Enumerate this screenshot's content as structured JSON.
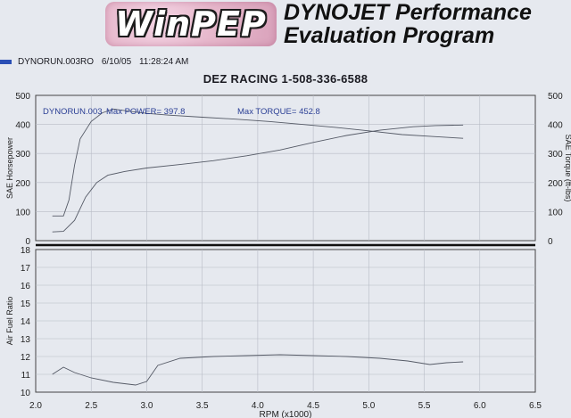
{
  "header": {
    "logo_text": "WinPEP",
    "title_line_1": "DYNOJET Performance",
    "title_line_2": "Evaluation Program"
  },
  "run_info": {
    "run_file": "DYNORUN.003RO",
    "date": "6/10/05",
    "time": "11:28:24 AM"
  },
  "chart_title": "DEZ RACING 1-508-336-6588",
  "chart_data": [
    {
      "type": "line",
      "name": "power-torque",
      "xlim": [
        2.0,
        6.5
      ],
      "ylim": [
        0,
        500
      ],
      "y_ticks": [
        0,
        100,
        200,
        300,
        400,
        500
      ],
      "right_y_ticks": [
        0,
        100,
        200,
        300,
        400,
        500
      ],
      "ylabel": "SAE Horsepower",
      "ylabel_right": "SAE Torque (ft-lbs)",
      "grid": true,
      "annotations": [
        {
          "text": "DYNORUN.003",
          "color": "#2b3f95"
        },
        {
          "text": "Max POWER= 397.8",
          "color": "#2b3f95"
        },
        {
          "text": "Max TORQUE= 452.8",
          "color": "#2b3f95"
        }
      ],
      "series": [
        {
          "role": "torque",
          "color": "#555a66",
          "x": [
            2.15,
            2.25,
            2.3,
            2.35,
            2.4,
            2.5,
            2.6,
            2.7,
            2.85,
            3.0,
            3.2,
            3.5,
            3.8,
            4.1,
            4.4,
            4.7,
            5.0,
            5.3,
            5.6,
            5.85
          ],
          "y": [
            85,
            85,
            140,
            260,
            350,
            410,
            440,
            453,
            445,
            438,
            432,
            425,
            418,
            410,
            400,
            390,
            378,
            365,
            358,
            352
          ]
        },
        {
          "role": "power",
          "color": "#555a66",
          "x": [
            2.15,
            2.25,
            2.35,
            2.45,
            2.55,
            2.65,
            2.8,
            3.0,
            3.3,
            3.6,
            3.9,
            4.2,
            4.5,
            4.8,
            5.1,
            5.4,
            5.6,
            5.85
          ],
          "y": [
            30,
            32,
            70,
            150,
            200,
            225,
            238,
            250,
            262,
            275,
            292,
            312,
            338,
            362,
            380,
            392,
            396,
            397.8
          ]
        }
      ]
    },
    {
      "type": "line",
      "name": "air-fuel",
      "xlim": [
        2.0,
        6.5
      ],
      "ylim": [
        10,
        18
      ],
      "x_ticks": [
        "2.0",
        "2.5",
        "3.0",
        "3.5",
        "4.0",
        "4.5",
        "5.0",
        "5.5",
        "6.0",
        "6.5"
      ],
      "y_ticks": [
        10,
        11,
        12,
        13,
        14,
        15,
        16,
        17,
        18
      ],
      "ylabel": "Air Fuel Ratio",
      "xlabel": "RPM (x1000)",
      "grid": true,
      "series": [
        {
          "role": "afr",
          "color": "#555a66",
          "x": [
            2.15,
            2.25,
            2.35,
            2.5,
            2.7,
            2.9,
            3.0,
            3.1,
            3.3,
            3.6,
            3.9,
            4.2,
            4.5,
            4.8,
            5.1,
            5.35,
            5.55,
            5.7,
            5.85
          ],
          "y": [
            11.0,
            11.4,
            11.1,
            10.8,
            10.55,
            10.4,
            10.6,
            11.5,
            11.9,
            12.0,
            12.05,
            12.1,
            12.05,
            12.0,
            11.9,
            11.75,
            11.55,
            11.65,
            11.7
          ]
        }
      ]
    }
  ]
}
